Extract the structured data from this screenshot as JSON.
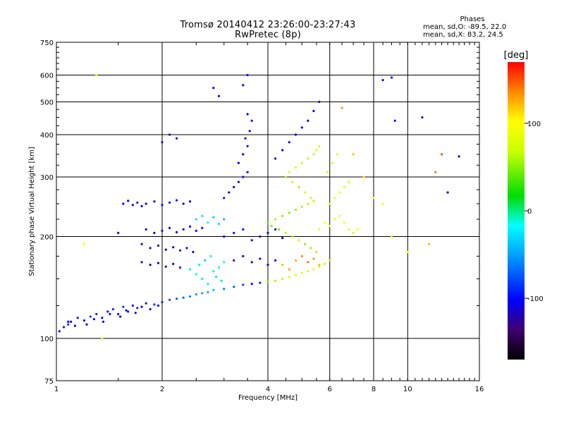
{
  "header": {
    "title": "Tromsø 20140412 23:26:00-23:27:43",
    "subtitle": "RwPretec (8p)"
  },
  "stats": {
    "heading": "Phases",
    "line1": "mean, sd,O: -89.5, 22.0",
    "line2": "mean, sd,X:  83.2, 24.5"
  },
  "colorbar": {
    "label": "[deg]",
    "ticks": [
      "100",
      "0",
      "-100"
    ]
  },
  "chart_data": {
    "type": "scatter",
    "title": "Tromsø 20140412 23:26:00-23:27:43",
    "subtitle": "RwPretec (8p)",
    "xlabel": "Frequency [MHz]",
    "ylabel": "Stationary phase Virtual Height [km]",
    "xscale": "log",
    "yscale": "log",
    "xlim": [
      1,
      16
    ],
    "ylim": [
      75,
      750
    ],
    "xticks": [
      1,
      2,
      4,
      6,
      8,
      10,
      16
    ],
    "yticks": [
      75,
      100,
      200,
      300,
      400,
      500,
      600,
      750
    ],
    "grid": true,
    "colorbar": {
      "label": "[deg]",
      "range": [
        -170,
        170
      ],
      "ticks": [
        100,
        0,
        -100
      ]
    },
    "series": [
      {
        "points": [
          [
            1.02,
            105,
            -100
          ],
          [
            1.05,
            108,
            -95
          ],
          [
            1.08,
            110,
            -90
          ],
          [
            1.1,
            112,
            -100
          ],
          [
            1.15,
            115,
            -95
          ],
          [
            1.2,
            113,
            -100
          ],
          [
            1.25,
            116,
            -85
          ],
          [
            1.3,
            118,
            -90
          ],
          [
            1.35,
            115,
            -100
          ],
          [
            1.4,
            120,
            -95
          ],
          [
            1.45,
            122,
            -90
          ],
          [
            1.5,
            118,
            -100
          ],
          [
            1.55,
            124,
            -85
          ],
          [
            1.6,
            120,
            -95
          ],
          [
            1.65,
            125,
            -100
          ],
          [
            1.7,
            123,
            -90
          ],
          [
            1.8,
            127,
            -95
          ],
          [
            1.9,
            126,
            -85
          ],
          [
            2.0,
            128,
            -90
          ],
          [
            2.1,
            130,
            -80
          ],
          [
            2.2,
            131,
            -75
          ],
          [
            2.3,
            132,
            -70
          ],
          [
            2.4,
            133,
            -60
          ],
          [
            2.5,
            135,
            -55
          ],
          [
            2.6,
            136,
            -50
          ],
          [
            2.7,
            137,
            -45
          ],
          [
            2.8,
            139,
            -40
          ],
          [
            3.0,
            140,
            -60
          ],
          [
            3.2,
            142,
            -70
          ],
          [
            3.4,
            144,
            -80
          ],
          [
            3.6,
            145,
            -100
          ],
          [
            3.8,
            146,
            -90
          ],
          [
            4.0,
            147,
            50
          ],
          [
            4.2,
            148,
            60
          ],
          [
            4.4,
            150,
            70
          ],
          [
            4.6,
            152,
            75
          ],
          [
            4.8,
            154,
            80
          ],
          [
            5.0,
            156,
            85
          ],
          [
            5.2,
            158,
            75
          ],
          [
            5.4,
            160,
            80
          ],
          [
            5.6,
            163,
            70
          ],
          [
            5.8,
            166,
            75
          ],
          [
            6.0,
            170,
            60
          ],
          [
            1.08,
            112,
            -110
          ],
          [
            1.13,
            109,
            -105
          ],
          [
            1.22,
            110,
            -110
          ],
          [
            1.28,
            114,
            -105
          ],
          [
            1.36,
            112,
            -110
          ],
          [
            1.42,
            118,
            -100
          ],
          [
            1.52,
            116,
            -110
          ],
          [
            1.58,
            121,
            -105
          ],
          [
            1.68,
            119,
            -110
          ],
          [
            1.75,
            124,
            -100
          ],
          [
            1.85,
            122,
            -110
          ],
          [
            1.95,
            125,
            -105
          ],
          [
            1.55,
            250,
            -100
          ],
          [
            1.6,
            255,
            -105
          ],
          [
            1.65,
            248,
            -110
          ],
          [
            1.7,
            252,
            -95
          ],
          [
            1.75,
            246,
            -100
          ],
          [
            1.8,
            250,
            -110
          ],
          [
            1.9,
            254,
            -105
          ],
          [
            2.0,
            248,
            -100
          ],
          [
            2.1,
            252,
            -95
          ],
          [
            2.2,
            256,
            -100
          ],
          [
            2.3,
            250,
            -110
          ],
          [
            2.4,
            254,
            -105
          ],
          [
            1.8,
            210,
            -110
          ],
          [
            1.9,
            205,
            -115
          ],
          [
            2.0,
            208,
            -105
          ],
          [
            2.1,
            212,
            -110
          ],
          [
            2.2,
            206,
            -115
          ],
          [
            2.3,
            210,
            -105
          ],
          [
            2.4,
            214,
            -110
          ],
          [
            2.5,
            208,
            -100
          ],
          [
            2.6,
            212,
            -95
          ],
          [
            1.75,
            190,
            -120
          ],
          [
            1.85,
            185,
            -115
          ],
          [
            1.95,
            188,
            -125
          ],
          [
            2.05,
            183,
            -120
          ],
          [
            2.15,
            186,
            -115
          ],
          [
            2.25,
            182,
            -120
          ],
          [
            2.35,
            185,
            -110
          ],
          [
            2.45,
            180,
            -105
          ],
          [
            1.75,
            168,
            -125
          ],
          [
            1.85,
            165,
            -120
          ],
          [
            1.95,
            167,
            -130
          ],
          [
            2.05,
            163,
            -125
          ],
          [
            2.15,
            166,
            -120
          ],
          [
            2.25,
            162,
            -115
          ],
          [
            2.4,
            160,
            -20
          ],
          [
            2.5,
            155,
            -15
          ],
          [
            2.55,
            165,
            -10
          ],
          [
            2.6,
            150,
            -25
          ],
          [
            2.65,
            170,
            -30
          ],
          [
            2.7,
            145,
            -20
          ],
          [
            2.75,
            175,
            -15
          ],
          [
            2.8,
            158,
            -10
          ],
          [
            2.85,
            152,
            -25
          ],
          [
            2.9,
            162,
            -20
          ],
          [
            2.95,
            148,
            -30
          ],
          [
            3.0,
            168,
            -15
          ],
          [
            2.5,
            225,
            -30
          ],
          [
            2.6,
            230,
            -25
          ],
          [
            2.7,
            220,
            -20
          ],
          [
            2.8,
            228,
            -35
          ],
          [
            2.9,
            218,
            -30
          ],
          [
            3.0,
            225,
            -40
          ],
          [
            3.0,
            260,
            -100
          ],
          [
            3.1,
            270,
            -110
          ],
          [
            3.2,
            280,
            -105
          ],
          [
            3.3,
            290,
            -115
          ],
          [
            3.4,
            300,
            -110
          ],
          [
            3.5,
            310,
            -100
          ],
          [
            3.3,
            330,
            -105
          ],
          [
            3.4,
            350,
            -110
          ],
          [
            3.5,
            370,
            -100
          ],
          [
            3.45,
            390,
            -105
          ],
          [
            3.55,
            410,
            -110
          ],
          [
            3.6,
            440,
            -100
          ],
          [
            3.5,
            460,
            -105
          ],
          [
            3.0,
            200,
            -105
          ],
          [
            3.2,
            205,
            -110
          ],
          [
            3.4,
            210,
            -100
          ],
          [
            3.6,
            195,
            -105
          ],
          [
            3.8,
            200,
            -110
          ],
          [
            4.0,
            205,
            -115
          ],
          [
            4.2,
            210,
            -120
          ],
          [
            4.4,
            198,
            -110
          ],
          [
            3.2,
            170,
            -120
          ],
          [
            3.4,
            175,
            -115
          ],
          [
            3.6,
            168,
            -125
          ],
          [
            3.8,
            172,
            -120
          ],
          [
            4.0,
            165,
            -115
          ],
          [
            4.2,
            170,
            -110
          ],
          [
            4.0,
            220,
            40
          ],
          [
            4.1,
            215,
            50
          ],
          [
            4.2,
            225,
            60
          ],
          [
            4.3,
            210,
            45
          ],
          [
            4.4,
            230,
            55
          ],
          [
            4.5,
            205,
            65
          ],
          [
            4.6,
            235,
            50
          ],
          [
            4.7,
            200,
            60
          ],
          [
            4.8,
            240,
            55
          ],
          [
            4.9,
            195,
            70
          ],
          [
            5.0,
            245,
            60
          ],
          [
            5.1,
            190,
            50
          ],
          [
            5.2,
            250,
            65
          ],
          [
            5.3,
            185,
            55
          ],
          [
            5.4,
            255,
            70
          ],
          [
            5.5,
            180,
            60
          ],
          [
            4.5,
            300,
            60
          ],
          [
            4.6,
            310,
            70
          ],
          [
            4.7,
            290,
            65
          ],
          [
            4.8,
            320,
            75
          ],
          [
            4.9,
            280,
            60
          ],
          [
            5.0,
            330,
            70
          ],
          [
            5.1,
            270,
            80
          ],
          [
            5.2,
            340,
            65
          ],
          [
            5.3,
            260,
            75
          ],
          [
            5.4,
            350,
            70
          ],
          [
            5.5,
            360,
            85
          ],
          [
            5.6,
            370,
            75
          ],
          [
            4.4,
            165,
            120
          ],
          [
            4.6,
            160,
            130
          ],
          [
            4.8,
            170,
            125
          ],
          [
            5.0,
            175,
            135
          ],
          [
            5.2,
            168,
            140
          ],
          [
            5.4,
            172,
            130
          ],
          [
            5.6,
            165,
            120
          ],
          [
            5.6,
            210,
            90
          ],
          [
            5.8,
            220,
            95
          ],
          [
            6.0,
            215,
            100
          ],
          [
            6.2,
            225,
            90
          ],
          [
            6.4,
            230,
            95
          ],
          [
            6.6,
            220,
            100
          ],
          [
            6.8,
            210,
            105
          ],
          [
            7.0,
            205,
            110
          ],
          [
            7.2,
            210,
            100
          ],
          [
            6.0,
            250,
            80
          ],
          [
            6.2,
            260,
            85
          ],
          [
            6.4,
            270,
            90
          ],
          [
            6.6,
            280,
            85
          ],
          [
            6.8,
            290,
            80
          ],
          [
            5.9,
            310,
            75
          ],
          [
            6.1,
            330,
            80
          ],
          [
            6.3,
            350,
            85
          ],
          [
            4.2,
            340,
            -100
          ],
          [
            4.4,
            360,
            -110
          ],
          [
            4.6,
            380,
            -105
          ],
          [
            4.8,
            400,
            -110
          ],
          [
            5.0,
            420,
            -100
          ],
          [
            5.2,
            440,
            -105
          ],
          [
            5.4,
            470,
            -110
          ],
          [
            5.6,
            500,
            -100
          ],
          [
            2.0,
            380,
            -120
          ],
          [
            2.1,
            400,
            -125
          ],
          [
            2.2,
            390,
            -115
          ],
          [
            2.9,
            520,
            -110
          ],
          [
            3.4,
            560,
            -115
          ],
          [
            3.5,
            600,
            -100
          ],
          [
            8.5,
            580,
            -110
          ],
          [
            9.0,
            590,
            -100
          ],
          [
            9.2,
            440,
            -110
          ],
          [
            11.0,
            450,
            -120
          ],
          [
            6.5,
            480,
            130
          ],
          [
            7.0,
            350,
            120
          ],
          [
            7.5,
            300,
            110
          ],
          [
            8.0,
            260,
            90
          ],
          [
            8.5,
            250,
            95
          ],
          [
            9.0,
            200,
            100
          ],
          [
            10.0,
            180,
            100
          ],
          [
            11.5,
            190,
            120
          ],
          [
            12.0,
            310,
            140
          ],
          [
            12.5,
            350,
            150
          ],
          [
            13.0,
            270,
            -100
          ],
          [
            14.0,
            345,
            -110
          ],
          [
            1.3,
            600,
            100
          ],
          [
            1.2,
            190,
            100
          ],
          [
            1.5,
            205,
            -110
          ],
          [
            2.8,
            550,
            -100
          ],
          [
            1.35,
            100,
            80
          ]
        ]
      }
    ]
  }
}
